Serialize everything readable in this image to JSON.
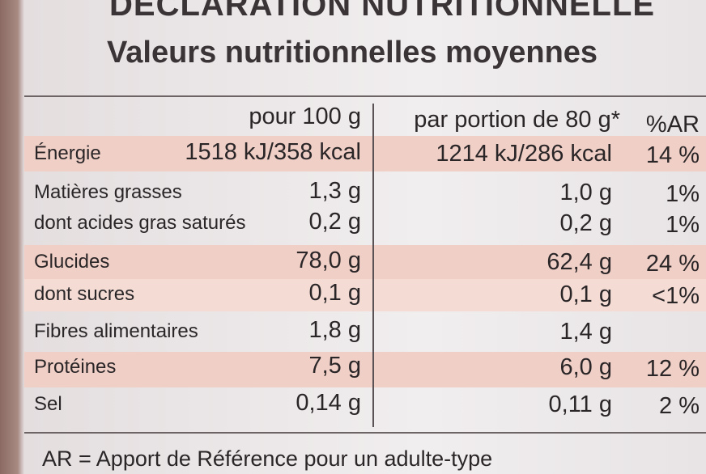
{
  "header": {
    "title": "DÉCLARATION NUTRITIONNELLE",
    "subtitle": "Valeurs nutritionnelles moyennes"
  },
  "table": {
    "columns": [
      "pour 100 g",
      "par portion de 80 g*",
      "%AR"
    ],
    "rows": [
      {
        "label": "Énergie",
        "per_100g": "1518 kJ/358 kcal",
        "per_portion": "1214 kJ/286 kcal",
        "ar": "14 %"
      },
      {
        "label": "Matières grasses",
        "per_100g": "1,3 g",
        "per_portion": "1,0 g",
        "ar": "1%"
      },
      {
        "label": "dont acides gras saturés",
        "per_100g": "0,2 g",
        "per_portion": "0,2 g",
        "ar": "1%"
      },
      {
        "label": "Glucides",
        "per_100g": "78,0 g",
        "per_portion": "62,4 g",
        "ar": "24 %"
      },
      {
        "label": "dont sucres",
        "per_100g": "0,1 g",
        "per_portion": "0,1 g",
        "ar": "<1%"
      },
      {
        "label": "Fibres alimentaires",
        "per_100g": "1,8 g",
        "per_portion": "1,4 g"
      },
      {
        "label": "Protéines",
        "per_100g": "7,5 g",
        "per_portion": "6,0 g",
        "ar": "12 %"
      },
      {
        "label": "Sel",
        "per_100g": "0,14 g",
        "per_portion": "0,11 g",
        "ar": "2 %"
      }
    ]
  },
  "footer": {
    "note": "AR = Apport de Référence pour un adulte-type"
  }
}
